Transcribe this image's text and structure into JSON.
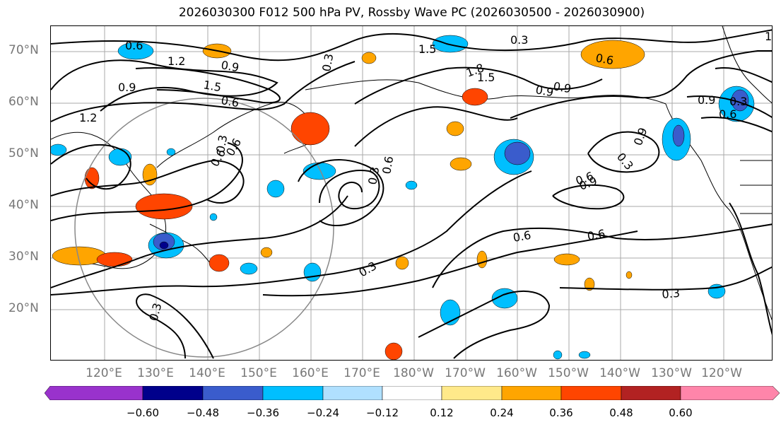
{
  "title": "2026030300 F012 500 hPa PV, Rossby Wave PC (2026030500 - 2026030900)",
  "lat_labels": [
    "70°N",
    "60°N",
    "50°N",
    "40°N",
    "30°N",
    "20°N"
  ],
  "lon_labels": [
    "120°E",
    "130°E",
    "140°E",
    "150°E",
    "160°E",
    "170°E",
    "180°W",
    "170°W",
    "160°W",
    "150°W",
    "140°W",
    "130°W",
    "120°W"
  ],
  "contour_labels": [
    "0.6",
    "1.2",
    "0.9",
    "0.9",
    "1.5",
    "0.6",
    "0.3",
    "1.5",
    "0.3",
    "0.6",
    "1.8",
    "0.9",
    "1.8",
    "1.5",
    "0.9",
    "0.6",
    "1.2",
    "0.9",
    "0.3",
    "0.6",
    "0.3",
    "0.6",
    "0.6",
    "0.3",
    "0.6",
    "0.3",
    "0.9",
    "0.3",
    "0.6",
    "0.6",
    "0.9",
    "0.6",
    "0.3",
    "0.3"
  ],
  "colorbar": {
    "ticks": [
      "−0.60",
      "−0.48",
      "−0.36",
      "−0.24",
      "−0.12",
      "0.12",
      "0.24",
      "0.36",
      "0.48",
      "0.60"
    ],
    "colors": [
      "#9932cc",
      "#00008b",
      "#3a5ccc",
      "#00bfff",
      "#b0e0ff",
      "#ffffff",
      "#ffe98a",
      "#ffa500",
      "#ff4500",
      "#b22222",
      "#ff85aa"
    ]
  }
}
